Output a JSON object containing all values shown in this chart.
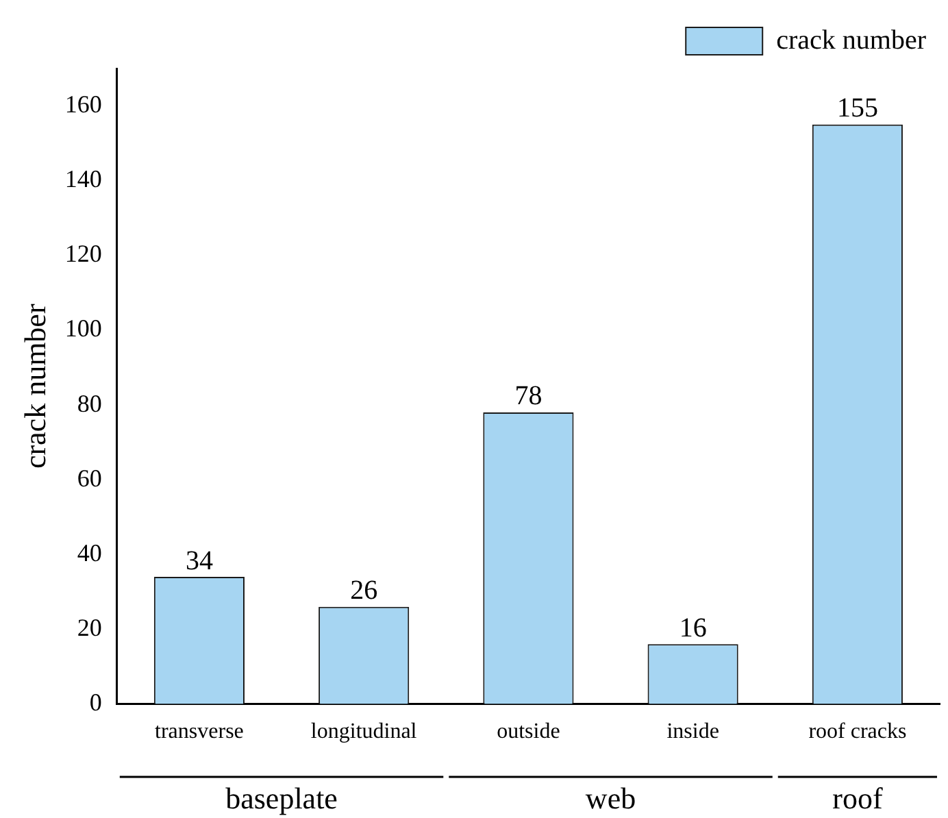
{
  "chart_data": {
    "type": "bar",
    "ylabel": "crack number",
    "categories": [
      "transverse",
      "longitudinal",
      "outside",
      "inside",
      "roof cracks"
    ],
    "series": [
      {
        "name": "crack number",
        "color": "#a6d5f2",
        "values": [
          34,
          26,
          78,
          16,
          155
        ]
      }
    ],
    "ylim": [
      0,
      170
    ],
    "yticks": [
      0,
      20,
      40,
      60,
      80,
      100,
      120,
      140,
      160
    ],
    "grid": false,
    "legend": "top right",
    "data_labels": true,
    "annotations": [
      "baseplate",
      "web",
      "roof"
    ]
  }
}
